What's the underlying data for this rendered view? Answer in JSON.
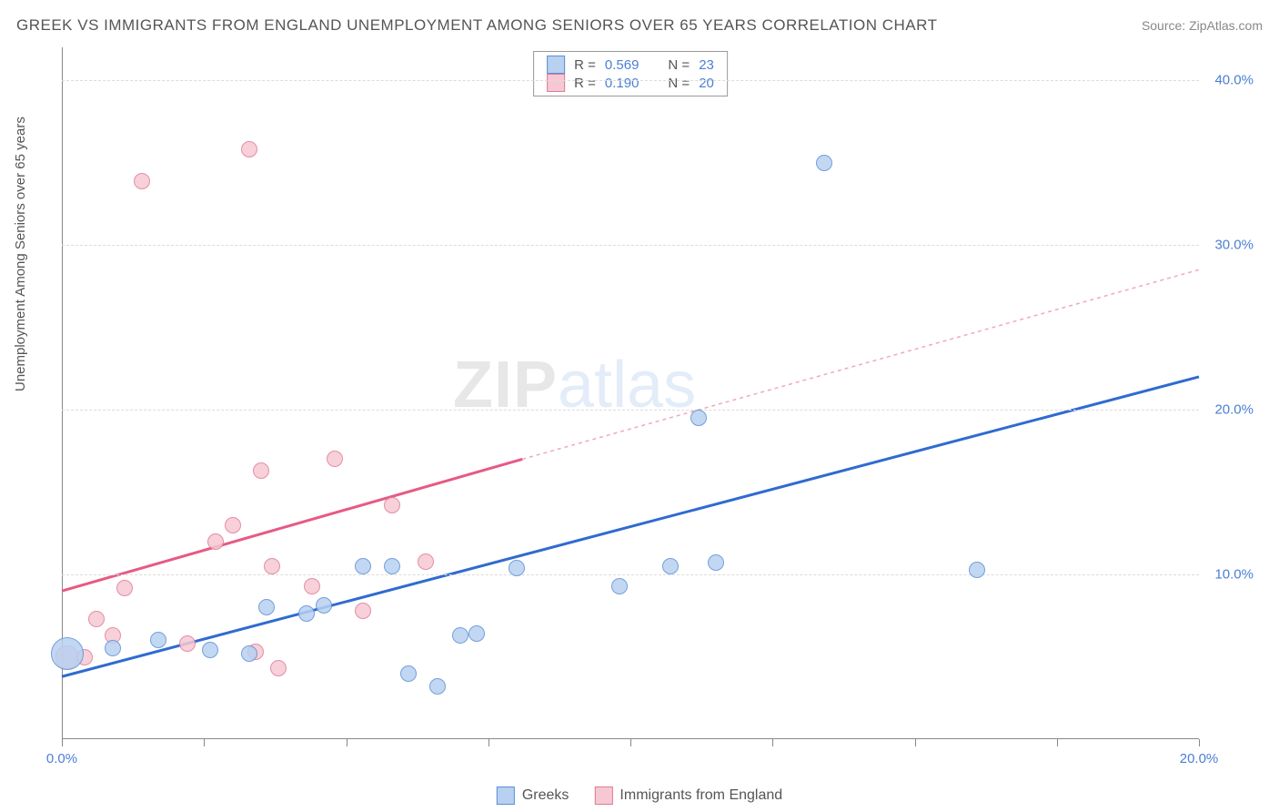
{
  "title": "GREEK VS IMMIGRANTS FROM ENGLAND UNEMPLOYMENT AMONG SENIORS OVER 65 YEARS CORRELATION CHART",
  "source": "Source: ZipAtlas.com",
  "y_axis_label": "Unemployment Among Seniors over 65 years",
  "watermark_a": "ZIP",
  "watermark_b": "atlas",
  "chart": {
    "type": "scatter",
    "xlim": [
      0,
      20
    ],
    "ylim": [
      0,
      42
    ],
    "x_ticks": [
      0,
      2.5,
      5,
      7.5,
      10,
      12.5,
      15,
      17.5,
      20
    ],
    "x_tick_labels": {
      "0": "0.0%",
      "20": "20.0%"
    },
    "y_gridlines": [
      10,
      20,
      30,
      40
    ],
    "y_tick_labels": {
      "10": "10.0%",
      "20": "20.0%",
      "30": "30.0%",
      "40": "40.0%"
    },
    "background_color": "#ffffff",
    "grid_color": "#dcdcdc",
    "axis_color": "#888888"
  },
  "series": {
    "greeks": {
      "label": "Greeks",
      "fill": "#b8d1f0",
      "stroke": "#5a8fd6",
      "stroke_width": 1.5,
      "points": [
        {
          "x": 0.1,
          "y": 5.2,
          "r": 18
        },
        {
          "x": 0.9,
          "y": 5.5,
          "r": 9
        },
        {
          "x": 1.7,
          "y": 6.0,
          "r": 9
        },
        {
          "x": 2.6,
          "y": 5.4,
          "r": 9
        },
        {
          "x": 3.3,
          "y": 5.2,
          "r": 9
        },
        {
          "x": 3.6,
          "y": 8.0,
          "r": 9
        },
        {
          "x": 4.3,
          "y": 7.6,
          "r": 9
        },
        {
          "x": 4.6,
          "y": 8.1,
          "r": 9
        },
        {
          "x": 5.3,
          "y": 10.5,
          "r": 9
        },
        {
          "x": 5.8,
          "y": 10.5,
          "r": 9
        },
        {
          "x": 6.1,
          "y": 4.0,
          "r": 9
        },
        {
          "x": 6.6,
          "y": 3.2,
          "r": 9
        },
        {
          "x": 7.0,
          "y": 6.3,
          "r": 9
        },
        {
          "x": 7.3,
          "y": 6.4,
          "r": 9
        },
        {
          "x": 8.0,
          "y": 10.4,
          "r": 9
        },
        {
          "x": 9.8,
          "y": 9.3,
          "r": 9
        },
        {
          "x": 10.7,
          "y": 10.5,
          "r": 9
        },
        {
          "x": 11.5,
          "y": 10.7,
          "r": 9
        },
        {
          "x": 11.2,
          "y": 19.5,
          "r": 9
        },
        {
          "x": 13.4,
          "y": 35.0,
          "r": 9
        },
        {
          "x": 16.1,
          "y": 10.3,
          "r": 9
        }
      ],
      "trend": {
        "x1": 0,
        "y1": 3.8,
        "x2": 20,
        "y2": 22.0,
        "color": "#2f6bd0",
        "width": 3,
        "dash": "none"
      }
    },
    "england": {
      "label": "Immigrants from England",
      "fill": "#f6c8d3",
      "stroke": "#e07a98",
      "stroke_width": 1.5,
      "points": [
        {
          "x": 0.1,
          "y": 5.0,
          "r": 13
        },
        {
          "x": 0.4,
          "y": 5.0,
          "r": 9
        },
        {
          "x": 0.6,
          "y": 7.3,
          "r": 9
        },
        {
          "x": 0.9,
          "y": 6.3,
          "r": 9
        },
        {
          "x": 1.1,
          "y": 9.2,
          "r": 9
        },
        {
          "x": 1.4,
          "y": 33.9,
          "r": 9
        },
        {
          "x": 2.2,
          "y": 5.8,
          "r": 9
        },
        {
          "x": 2.7,
          "y": 12.0,
          "r": 9
        },
        {
          "x": 3.0,
          "y": 13.0,
          "r": 9
        },
        {
          "x": 3.3,
          "y": 35.8,
          "r": 9
        },
        {
          "x": 3.4,
          "y": 5.3,
          "r": 9
        },
        {
          "x": 3.5,
          "y": 16.3,
          "r": 9
        },
        {
          "x": 3.7,
          "y": 10.5,
          "r": 9
        },
        {
          "x": 3.8,
          "y": 4.3,
          "r": 9
        },
        {
          "x": 4.4,
          "y": 9.3,
          "r": 9
        },
        {
          "x": 4.8,
          "y": 17.0,
          "r": 9
        },
        {
          "x": 5.3,
          "y": 7.8,
          "r": 9
        },
        {
          "x": 5.8,
          "y": 14.2,
          "r": 9
        },
        {
          "x": 6.4,
          "y": 10.8,
          "r": 9
        }
      ],
      "trend_solid": {
        "x1": 0,
        "y1": 9.0,
        "x2": 8.1,
        "y2": 17.0,
        "color": "#e65a84",
        "width": 3
      },
      "trend_dash": {
        "x1": 8.1,
        "y1": 17.0,
        "x2": 20,
        "y2": 28.5,
        "color": "#f0a8bc",
        "width": 1.5,
        "dash": "4,4"
      }
    }
  },
  "stats_legend": {
    "rows": [
      {
        "swatch_fill": "#b8d1f0",
        "swatch_stroke": "#5a8fd6",
        "r_label": "R =",
        "r_val": "0.569",
        "n_label": "N =",
        "n_val": "23"
      },
      {
        "swatch_fill": "#f6c8d3",
        "swatch_stroke": "#e07a98",
        "r_label": "R =",
        "r_val": "0.190",
        "n_label": "N =",
        "n_val": "20"
      }
    ]
  },
  "bottom_legend": {
    "items": [
      {
        "fill": "#b8d1f0",
        "stroke": "#5a8fd6",
        "label": "Greeks"
      },
      {
        "fill": "#f6c8d3",
        "stroke": "#e07a98",
        "label": "Immigrants from England"
      }
    ]
  }
}
